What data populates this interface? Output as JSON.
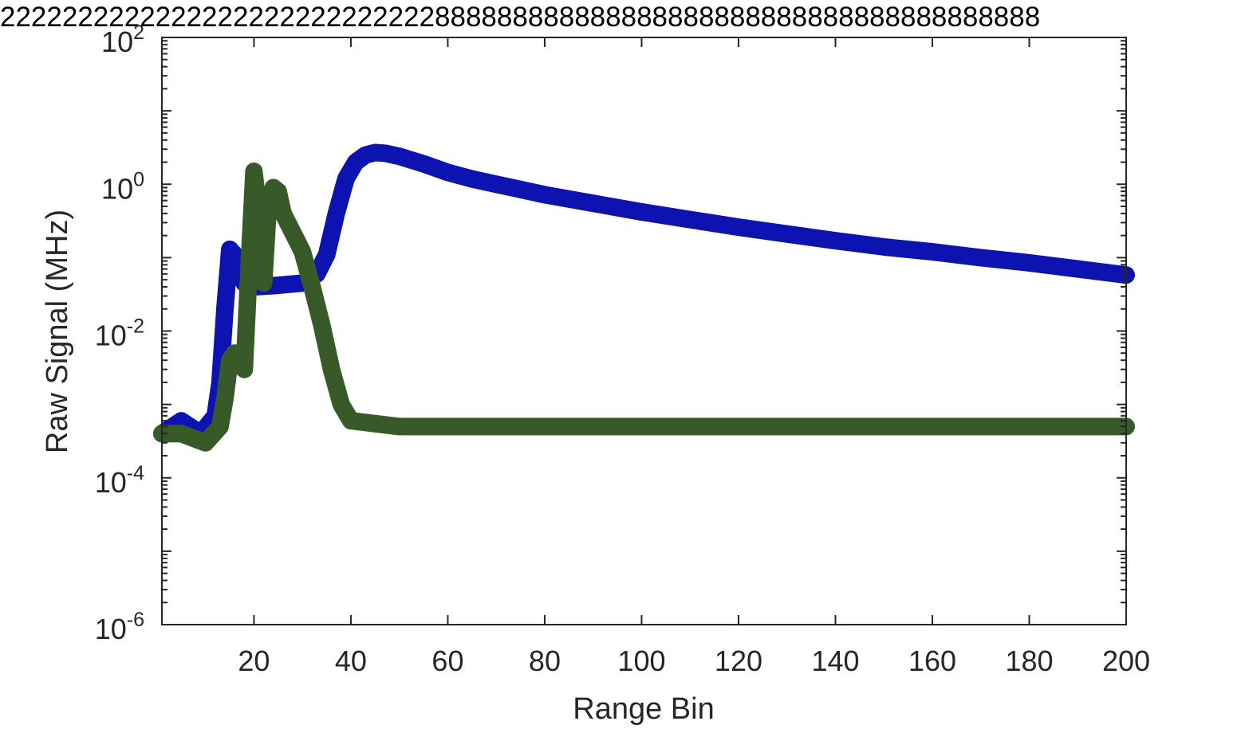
{
  "chart_data": {
    "type": "line",
    "title": "2222222222222222222222222222888888888888888888888888888888888888888",
    "xlabel": "Range Bin",
    "ylabel": "Raw Signal (MHz)",
    "xlim": [
      1,
      200
    ],
    "ylim": [
      1e-06,
      100
    ],
    "yscale": "log",
    "x_ticks": [
      20,
      40,
      60,
      80,
      100,
      120,
      140,
      160,
      180,
      200
    ],
    "y_ticks": [
      {
        "base": "10",
        "exp": "-6",
        "value": 1e-06
      },
      {
        "base": "10",
        "exp": "-4",
        "value": 0.0001
      },
      {
        "base": "10",
        "exp": "-2",
        "value": 0.01
      },
      {
        "base": "10",
        "exp": "0",
        "value": 1
      },
      {
        "base": "10",
        "exp": "2",
        "value": 100
      }
    ],
    "grid": false,
    "series": [
      {
        "color": "#0d13b0",
        "points": [
          [
            1,
            0.0004
          ],
          [
            5,
            0.0006
          ],
          [
            9,
            0.0004
          ],
          [
            12,
            0.0007
          ],
          [
            13,
            0.002
          ],
          [
            14,
            0.02
          ],
          [
            15,
            0.13
          ],
          [
            16,
            0.11
          ],
          [
            17,
            0.06
          ],
          [
            18,
            0.045
          ],
          [
            20,
            0.04
          ],
          [
            25,
            0.042
          ],
          [
            30,
            0.045
          ],
          [
            33,
            0.06
          ],
          [
            35,
            0.11
          ],
          [
            37,
            0.4
          ],
          [
            39,
            1.2
          ],
          [
            41,
            2.0
          ],
          [
            43,
            2.5
          ],
          [
            45,
            2.7
          ],
          [
            47,
            2.65
          ],
          [
            50,
            2.4
          ],
          [
            55,
            1.9
          ],
          [
            60,
            1.45
          ],
          [
            65,
            1.18
          ],
          [
            70,
            1.0
          ],
          [
            80,
            0.72
          ],
          [
            90,
            0.55
          ],
          [
            100,
            0.42
          ],
          [
            110,
            0.33
          ],
          [
            120,
            0.26
          ],
          [
            130,
            0.21
          ],
          [
            140,
            0.17
          ],
          [
            150,
            0.14
          ],
          [
            160,
            0.12
          ],
          [
            170,
            0.1
          ],
          [
            180,
            0.085
          ],
          [
            190,
            0.07
          ],
          [
            200,
            0.058
          ]
        ]
      },
      {
        "color": "#375a28",
        "points": [
          [
            1,
            0.0004
          ],
          [
            5,
            0.0004
          ],
          [
            10,
            0.0003
          ],
          [
            13,
            0.0005
          ],
          [
            14,
            0.0012
          ],
          [
            15,
            0.004
          ],
          [
            16,
            0.005
          ],
          [
            17,
            0.004
          ],
          [
            18,
            0.003
          ],
          [
            19,
            0.08
          ],
          [
            20,
            1.5
          ],
          [
            21,
            0.4
          ],
          [
            22,
            0.045
          ],
          [
            23,
            0.6
          ],
          [
            24,
            0.9
          ],
          [
            25,
            0.8
          ],
          [
            26,
            0.4
          ],
          [
            28,
            0.22
          ],
          [
            30,
            0.12
          ],
          [
            32,
            0.04
          ],
          [
            34,
            0.012
          ],
          [
            36,
            0.003
          ],
          [
            38,
            0.001
          ],
          [
            40,
            0.0006
          ],
          [
            50,
            0.0005
          ],
          [
            80,
            0.0005
          ],
          [
            120,
            0.0005
          ],
          [
            160,
            0.0005
          ],
          [
            200,
            0.0005
          ]
        ]
      }
    ]
  }
}
